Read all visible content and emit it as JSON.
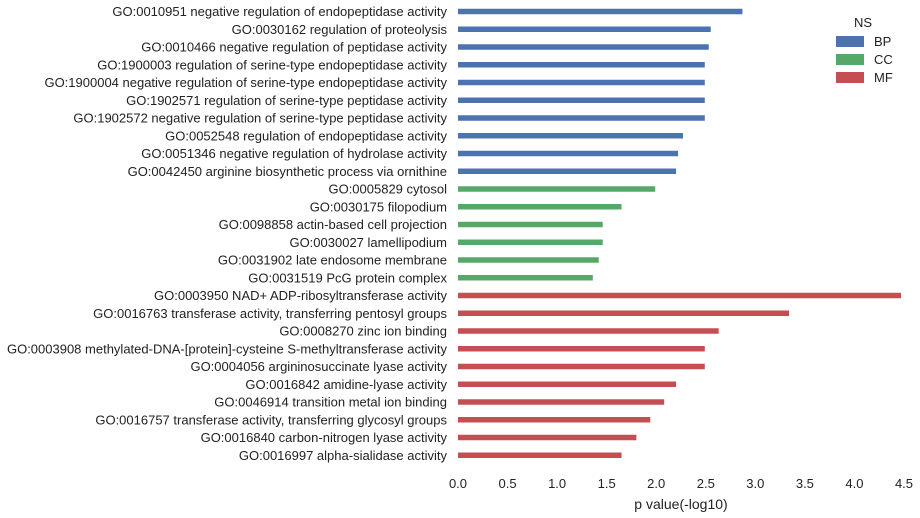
{
  "chart_data": {
    "type": "bar",
    "orientation": "horizontal",
    "xlabel": "p value(-log10)",
    "xlim": [
      0.0,
      4.5
    ],
    "xticks": [
      "0.0",
      "0.5",
      "1.0",
      "1.5",
      "2.0",
      "2.5",
      "3.0",
      "3.5",
      "4.0",
      "4.5"
    ],
    "grid": false,
    "legend": {
      "title": "NS",
      "placement": "top-right",
      "entries": [
        {
          "name": "BP",
          "color": "#4c72b0"
        },
        {
          "name": "CC",
          "color": "#55a868"
        },
        {
          "name": "MF",
          "color": "#c44e52"
        }
      ]
    },
    "bars": [
      {
        "label": "GO:0010951 negative regulation of endopeptidase activity",
        "value": 2.87,
        "group": "BP"
      },
      {
        "label": "GO:0030162 regulation of proteolysis",
        "value": 2.55,
        "group": "BP"
      },
      {
        "label": "GO:0010466 negative regulation of peptidase activity",
        "value": 2.53,
        "group": "BP"
      },
      {
        "label": "GO:1900003 regulation of serine-type endopeptidase activity",
        "value": 2.49,
        "group": "BP"
      },
      {
        "label": "GO:1900004 negative regulation of serine-type endopeptidase activity",
        "value": 2.49,
        "group": "BP"
      },
      {
        "label": "GO:1902571 regulation of serine-type peptidase activity",
        "value": 2.49,
        "group": "BP"
      },
      {
        "label": "GO:1902572 negative regulation of serine-type peptidase activity",
        "value": 2.49,
        "group": "BP"
      },
      {
        "label": "GO:0052548 regulation of endopeptidase activity",
        "value": 2.27,
        "group": "BP"
      },
      {
        "label": "GO:0051346 negative regulation of hydrolase activity",
        "value": 2.22,
        "group": "BP"
      },
      {
        "label": "GO:0042450 arginine biosynthetic process via ornithine",
        "value": 2.2,
        "group": "BP"
      },
      {
        "label": "GO:0005829 cytosol",
        "value": 1.99,
        "group": "CC"
      },
      {
        "label": "GO:0030175 filopodium",
        "value": 1.65,
        "group": "CC"
      },
      {
        "label": "GO:0098858 actin-based cell projection",
        "value": 1.46,
        "group": "CC"
      },
      {
        "label": "GO:0030027 lamellipodium",
        "value": 1.46,
        "group": "CC"
      },
      {
        "label": "GO:0031902 late endosome membrane",
        "value": 1.42,
        "group": "CC"
      },
      {
        "label": "GO:0031519 PcG protein complex",
        "value": 1.36,
        "group": "CC"
      },
      {
        "label": "GO:0003950 NAD+ ADP-ribosyltransferase activity",
        "value": 4.47,
        "group": "MF"
      },
      {
        "label": "GO:0016763 transferase activity, transferring pentosyl groups",
        "value": 3.34,
        "group": "MF"
      },
      {
        "label": "GO:0008270 zinc ion binding",
        "value": 2.63,
        "group": "MF"
      },
      {
        "label": "GO:0003908 methylated-DNA-[protein]-cysteine S-methyltransferase activity",
        "value": 2.49,
        "group": "MF"
      },
      {
        "label": "GO:0004056 argininosuccinate lyase activity",
        "value": 2.49,
        "group": "MF"
      },
      {
        "label": "GO:0016842 amidine-lyase activity",
        "value": 2.2,
        "group": "MF"
      },
      {
        "label": "GO:0046914 transition metal ion binding",
        "value": 2.08,
        "group": "MF"
      },
      {
        "label": "GO:0016757 transferase activity, transferring glycosyl groups",
        "value": 1.94,
        "group": "MF"
      },
      {
        "label": "GO:0016840 carbon-nitrogen lyase activity",
        "value": 1.8,
        "group": "MF"
      },
      {
        "label": "GO:0016997 alpha-sialidase activity",
        "value": 1.65,
        "group": "MF"
      }
    ]
  }
}
